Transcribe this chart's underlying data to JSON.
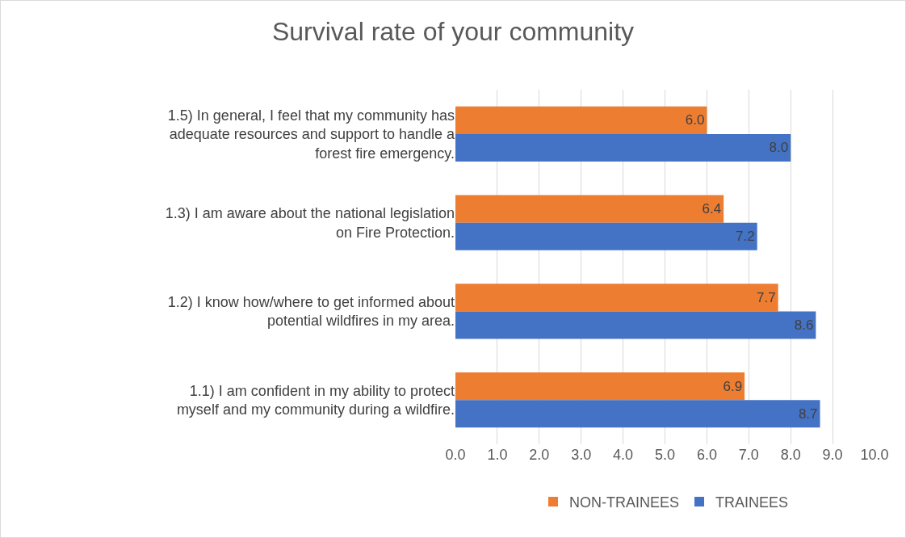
{
  "chart_data": {
    "type": "bar",
    "orientation": "horizontal",
    "title": "Survival rate of your community",
    "categories": [
      "1.5) In general, I feel that my community has adequate resources and support to handle a forest fire emergency.",
      "1.3) I am aware about the national legislation on Fire Protection.",
      "1.2) I know how/where to get informed about potential wildfires in my area.",
      "1.1) I am confident in my ability to protect myself and my community during a wildfire."
    ],
    "series": [
      {
        "name": "NON-TRAINEES",
        "color": "#ed7d31",
        "values": [
          6.0,
          6.4,
          7.7,
          6.9
        ],
        "value_labels": [
          "6.0",
          "6.4",
          "7.7",
          "6.9"
        ]
      },
      {
        "name": "TRAINEES",
        "color": "#4472c4",
        "values": [
          8.0,
          7.2,
          8.6,
          8.7
        ],
        "value_labels": [
          "8.0",
          "7.2",
          "8.6",
          "8.7"
        ]
      }
    ],
    "xlim": [
      0,
      10
    ],
    "xticks": [
      {
        "value": 0,
        "label": "0.0"
      },
      {
        "value": 1,
        "label": "1.0"
      },
      {
        "value": 2,
        "label": "2.0"
      },
      {
        "value": 3,
        "label": "3.0"
      },
      {
        "value": 4,
        "label": "4.0"
      },
      {
        "value": 5,
        "label": "5.0"
      },
      {
        "value": 6,
        "label": "6.0"
      },
      {
        "value": 7,
        "label": "7.0"
      },
      {
        "value": 8,
        "label": "8.0"
      },
      {
        "value": 9,
        "label": "9.0"
      },
      {
        "value": 10,
        "label": "10.0"
      }
    ],
    "grid": "x",
    "legend": "bottom"
  }
}
